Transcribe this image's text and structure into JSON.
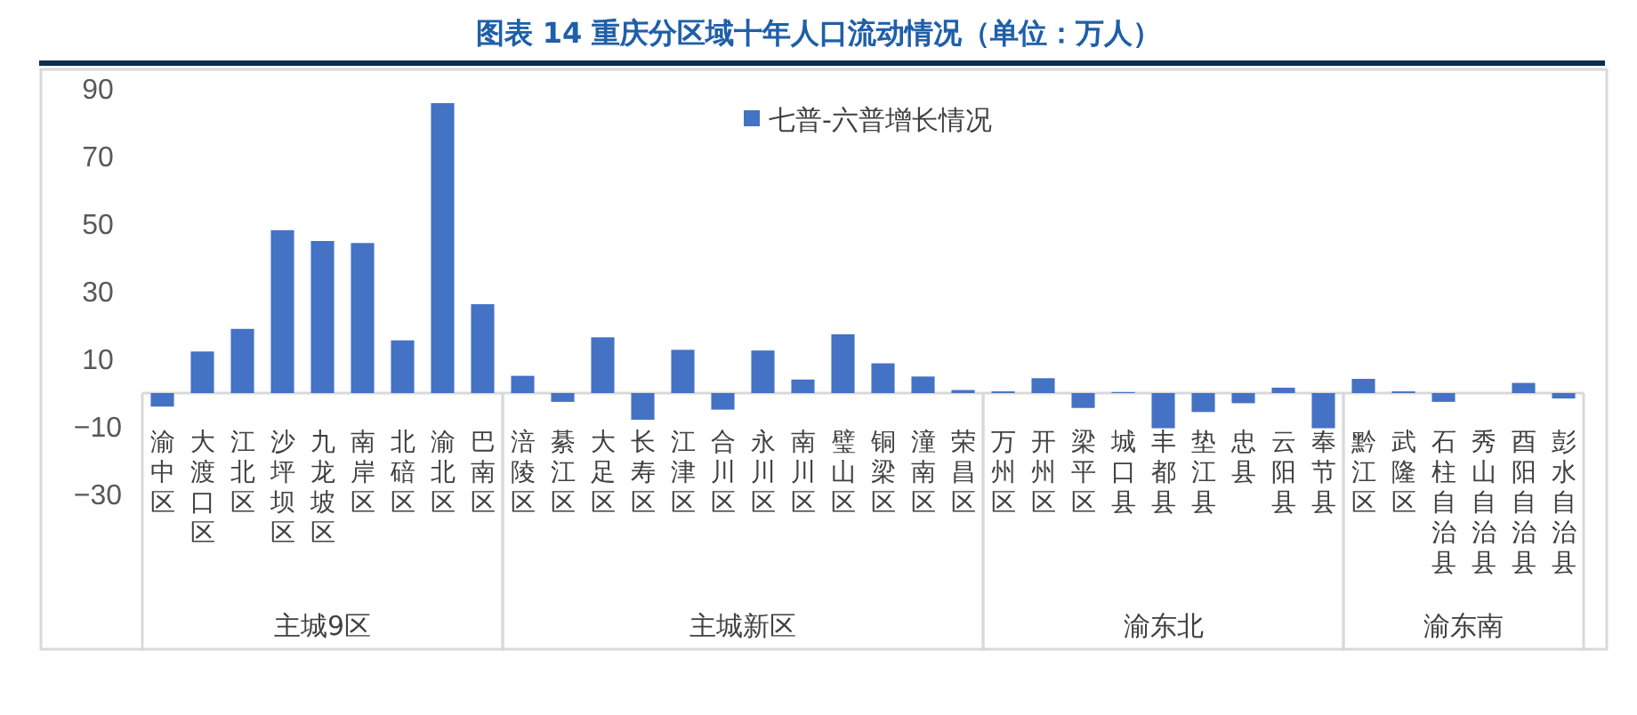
{
  "chart_data": {
    "type": "bar",
    "title": "图表 14 重庆分区域十年人口流动情况（单位：万人）",
    "categories": [
      "渝中区",
      "大渡口区",
      "江北区",
      "沙坪坝区",
      "九龙坡区",
      "南岸区",
      "北碚区",
      "渝北区",
      "巴南区",
      "涪陵区",
      "綦江区",
      "大足区",
      "长寿区",
      "江津区",
      "合川区",
      "永川区",
      "南川区",
      "璧山区",
      "铜梁区",
      "潼南区",
      "荣昌区",
      "万州区",
      "开州区",
      "梁平区",
      "城口县",
      "丰都县",
      "垫江县",
      "忠县",
      "云阳县",
      "奉节县",
      "黔江区",
      "武隆区",
      "石柱自治县",
      "秀山自治县",
      "酉阳自治县",
      "彭水自治县"
    ],
    "series": [
      {
        "name": "七普-六普增长情况",
        "color": "#4472c4",
        "values": [
          -4,
          12.3,
          19,
          48.2,
          45,
          44.4,
          15.6,
          85.8,
          26.3,
          5.1,
          -2.6,
          16.5,
          -7.9,
          12.8,
          -4.9,
          12.6,
          4,
          17.4,
          8.8,
          4.9,
          0.9,
          0.5,
          4.4,
          -4.4,
          0.3,
          -10.4,
          -5.6,
          -3,
          1.6,
          -10.4,
          4.2,
          0.5,
          -2.6,
          0,
          3,
          -1.6
        ]
      }
    ],
    "ylim": [
      -30,
      90
    ],
    "yticks": [
      -30,
      -10,
      10,
      30,
      50,
      70,
      90
    ],
    "grid": false,
    "legend": "top",
    "annotations": [
      "主城9区",
      "主城新区",
      "渝东北",
      "渝东南"
    ]
  }
}
